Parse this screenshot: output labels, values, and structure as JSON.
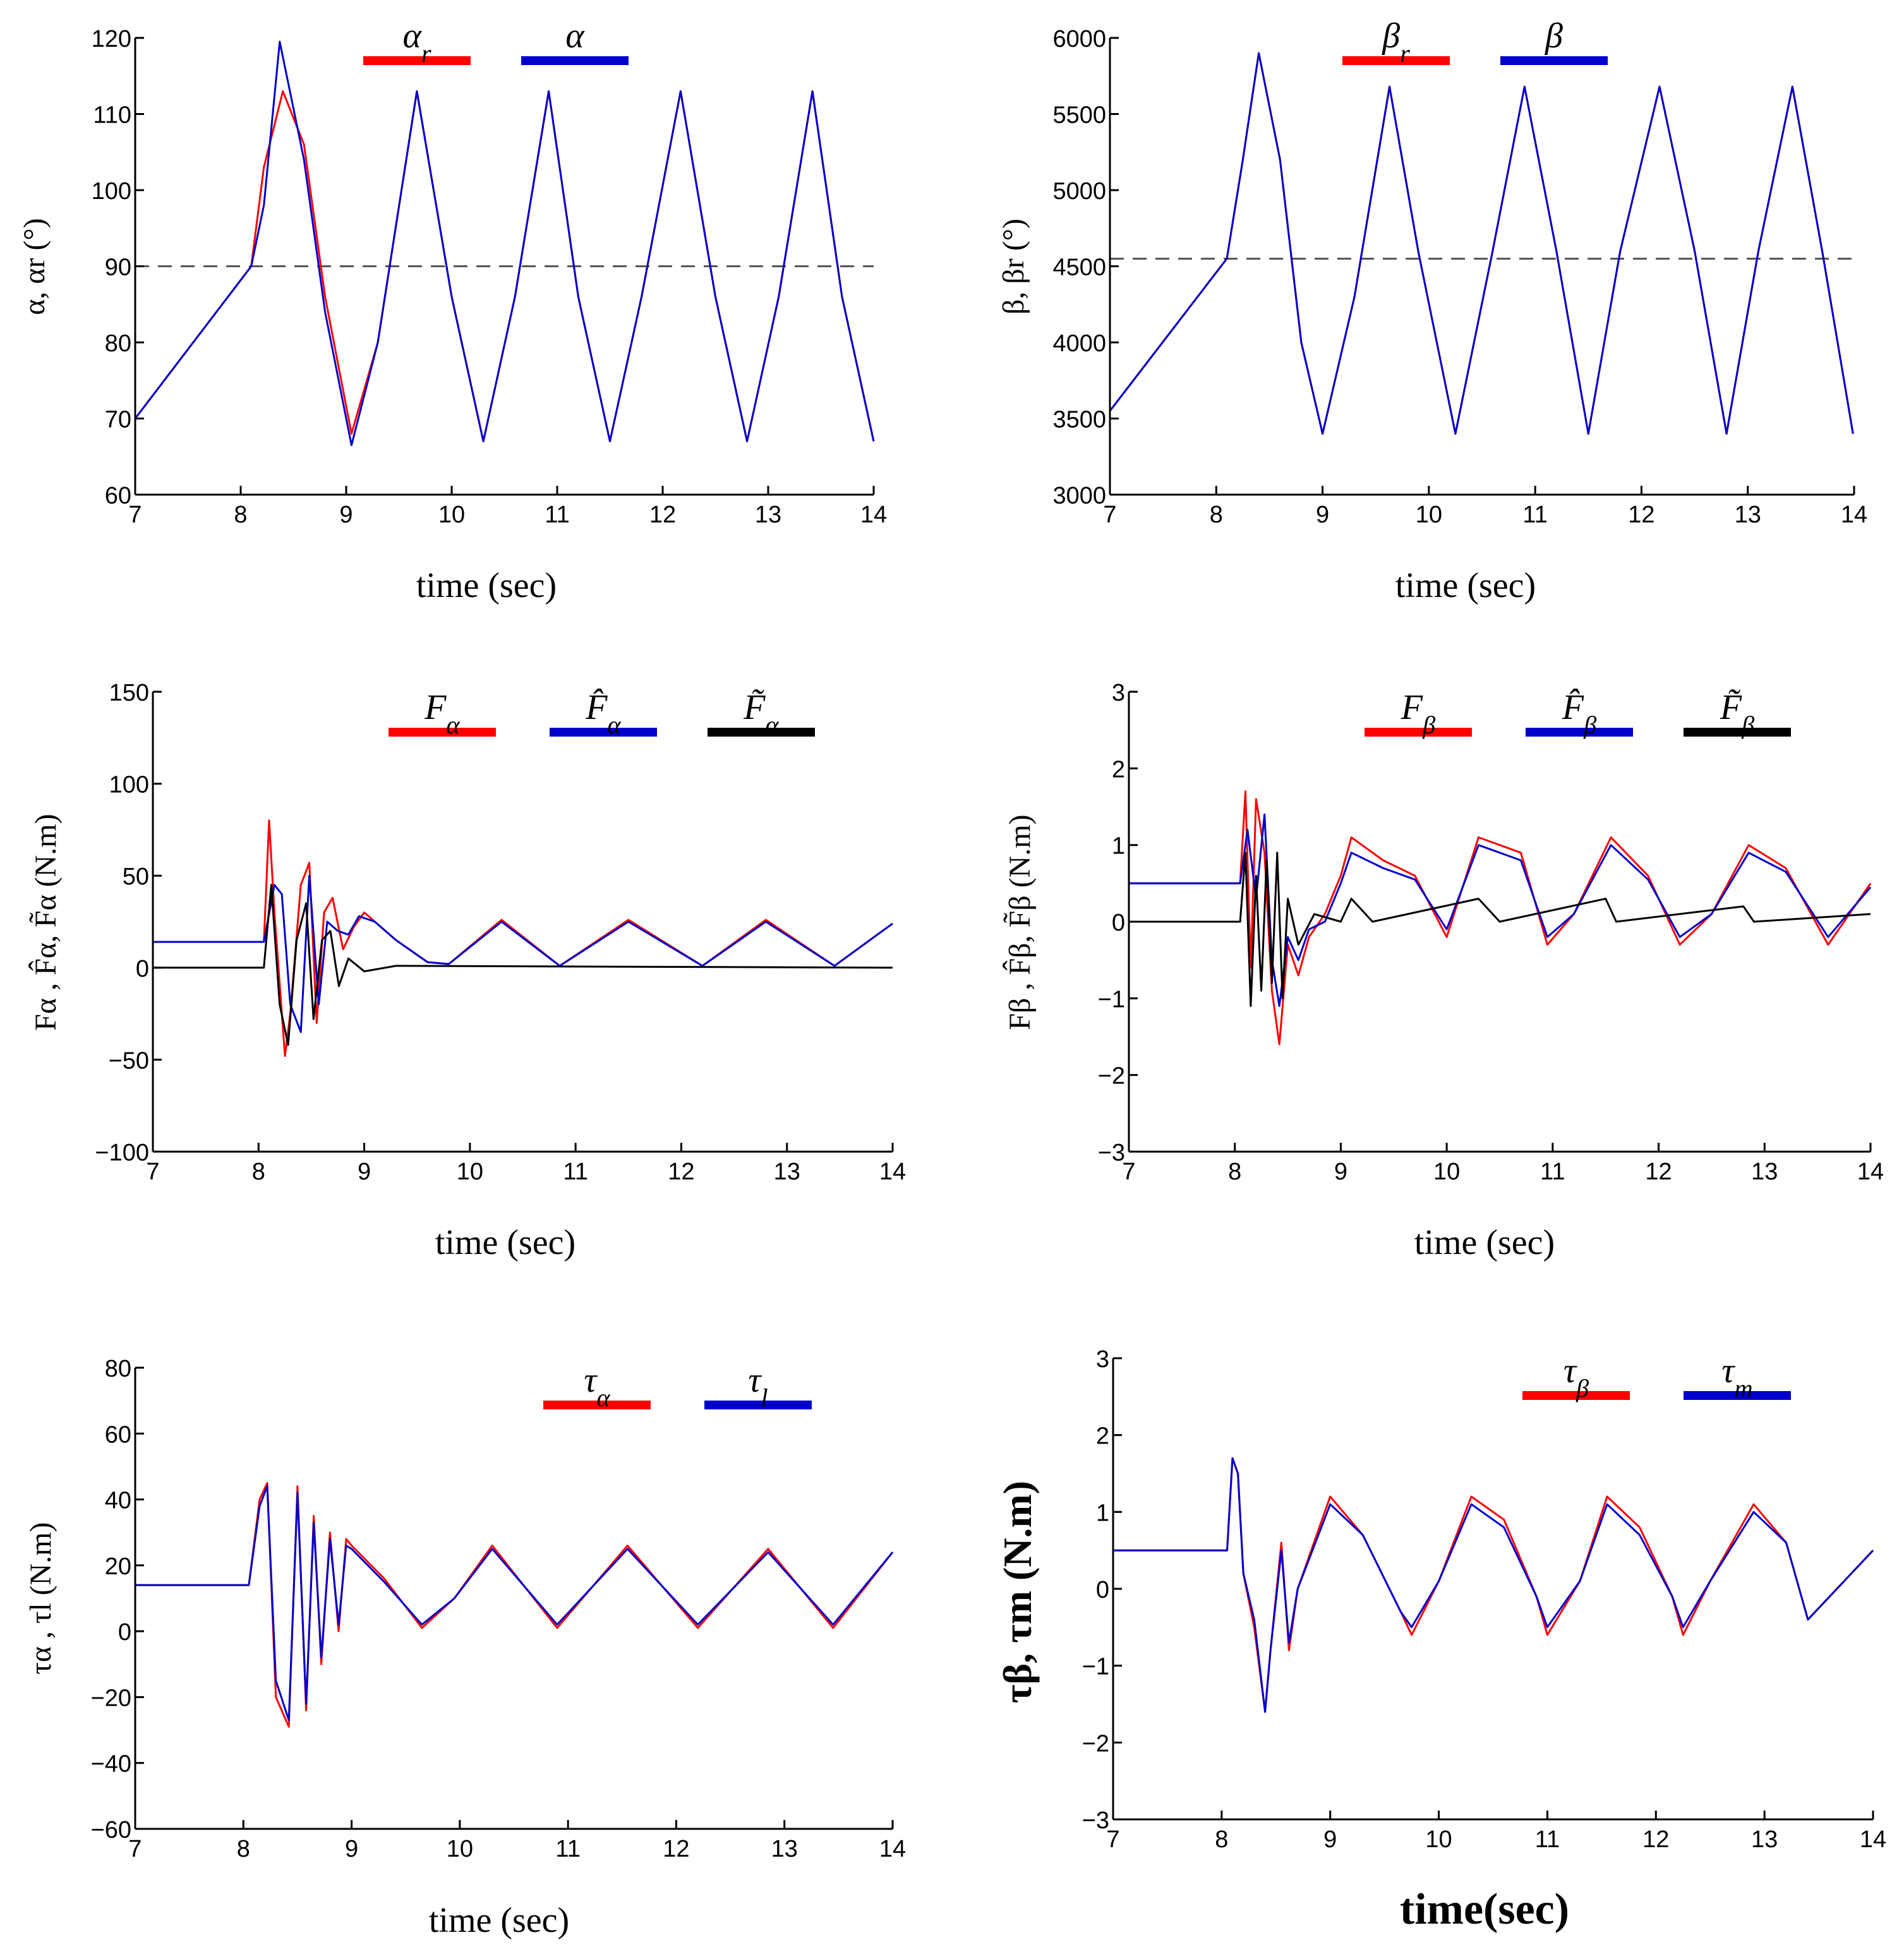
{
  "colors": {
    "red": "#ff0000",
    "blue": "#0000cc",
    "black": "#000000",
    "dash": "#555555"
  },
  "chart_data": [
    {
      "id": "alpha",
      "type": "line",
      "xlabel": "time (sec)",
      "ylabel": "α, αr (°)",
      "xlim": [
        7,
        14
      ],
      "ylim": [
        60,
        120
      ],
      "xticks": [
        7,
        8,
        9,
        10,
        11,
        12,
        13,
        14
      ],
      "yticks": [
        60,
        70,
        80,
        90,
        100,
        110,
        120
      ],
      "reference_line": 90,
      "series": [
        {
          "name": "αr",
          "color": "#ff0000",
          "x": [
            7,
            8.1,
            8.22,
            8.4,
            8.6,
            8.8,
            9.05,
            9.3,
            9.67,
            10.0,
            10.3,
            10.6,
            10.92,
            11.2,
            11.5,
            11.8,
            12.17,
            12.5,
            12.8,
            13.1,
            13.42,
            13.7,
            14
          ],
          "y": [
            70,
            90,
            103,
            113,
            106,
            86,
            68,
            80,
            113,
            86,
            67,
            86,
            113,
            86,
            67,
            86,
            113,
            86,
            67,
            86,
            113,
            86,
            67
          ]
        },
        {
          "name": "α",
          "color": "#0000cc",
          "x": [
            7,
            8.1,
            8.22,
            8.37,
            8.6,
            8.8,
            9.05,
            9.3,
            9.67,
            10.0,
            10.3,
            10.6,
            10.92,
            11.2,
            11.5,
            11.8,
            12.17,
            12.5,
            12.8,
            13.1,
            13.42,
            13.7,
            14
          ],
          "y": [
            70,
            90,
            98,
            119.5,
            104,
            84,
            66.5,
            80,
            113,
            86,
            67,
            86,
            113,
            86,
            67,
            86,
            113,
            86,
            67,
            86,
            113,
            86,
            67
          ]
        }
      ],
      "legend": [
        {
          "label": "αr",
          "color": "#ff0000"
        },
        {
          "label": "α",
          "color": "#0000cc"
        }
      ]
    },
    {
      "id": "beta",
      "type": "line",
      "xlabel": "time (sec)",
      "ylabel": "β, βr (°)",
      "xlim": [
        7,
        14
      ],
      "ylim": [
        3000,
        6000
      ],
      "xticks": [
        7,
        8,
        9,
        10,
        11,
        12,
        13,
        14
      ],
      "yticks": [
        3000,
        3500,
        4000,
        4500,
        5000,
        5500,
        6000
      ],
      "reference_line": 4550,
      "series": [
        {
          "name": "βr",
          "color": "#ff0000",
          "x": [
            7,
            8.1,
            8.25,
            8.4,
            8.6,
            8.8,
            9.0,
            9.3,
            9.63,
            9.9,
            10.25,
            10.6,
            10.9,
            11.2,
            11.5,
            11.8,
            12.17,
            12.5,
            12.8,
            13.1,
            13.42,
            13.7,
            13.99
          ],
          "y": [
            3550,
            4550,
            5200,
            5900,
            5200,
            4000,
            3400,
            4300,
            5680,
            4600,
            3400,
            4600,
            5680,
            4600,
            3400,
            4600,
            5680,
            4600,
            3400,
            4600,
            5680,
            4600,
            3400
          ]
        },
        {
          "name": "β",
          "color": "#0000cc",
          "x": [
            7,
            8.1,
            8.25,
            8.4,
            8.6,
            8.8,
            9.0,
            9.3,
            9.63,
            9.9,
            10.25,
            10.6,
            10.9,
            11.2,
            11.5,
            11.8,
            12.17,
            12.5,
            12.8,
            13.1,
            13.42,
            13.7,
            13.99
          ],
          "y": [
            3550,
            4550,
            5200,
            5900,
            5200,
            4000,
            3400,
            4300,
            5680,
            4600,
            3400,
            4600,
            5680,
            4600,
            3400,
            4600,
            5680,
            4600,
            3400,
            4600,
            5680,
            4600,
            3400
          ]
        }
      ],
      "legend": [
        {
          "label": "βr",
          "color": "#ff0000"
        },
        {
          "label": "β",
          "color": "#0000cc"
        }
      ]
    },
    {
      "id": "F_alpha",
      "type": "line",
      "xlabel": "time (sec)",
      "ylabel": "Fα , F̂α, F̃α (N.m)",
      "xlim": [
        7,
        14
      ],
      "ylim": [
        -100,
        150
      ],
      "xticks": [
        7,
        8,
        9,
        10,
        11,
        12,
        13,
        14
      ],
      "yticks": [
        -100,
        -50,
        0,
        50,
        100,
        150
      ],
      "series": [
        {
          "name": "Fα",
          "color": "#ff0000",
          "x": [
            7,
            8.05,
            8.1,
            8.15,
            8.25,
            8.3,
            8.4,
            8.48,
            8.55,
            8.62,
            8.7,
            8.8,
            8.9,
            9.0,
            9.3,
            9.6,
            9.8,
            10.3,
            10.85,
            11.5,
            12.2,
            12.8,
            13.45,
            14
          ],
          "y": [
            14,
            14,
            80,
            30,
            -48,
            -25,
            45,
            57,
            -30,
            30,
            38,
            10,
            22,
            30,
            15,
            3,
            2,
            26,
            1,
            26,
            1,
            26,
            1,
            24
          ]
        },
        {
          "name": "F̂α",
          "color": "#0000cc",
          "x": [
            7,
            8.05,
            8.15,
            8.22,
            8.3,
            8.4,
            8.48,
            8.57,
            8.65,
            8.75,
            8.85,
            8.95,
            9.1,
            9.3,
            9.6,
            9.8,
            10.3,
            10.85,
            11.5,
            12.2,
            12.8,
            13.45,
            14
          ],
          "y": [
            14,
            14,
            45,
            40,
            -20,
            -35,
            50,
            -20,
            25,
            20,
            18,
            28,
            25,
            15,
            3,
            2,
            25,
            1,
            25,
            1,
            25,
            1,
            24
          ]
        },
        {
          "name": "F̃α",
          "color": "#000000",
          "x": [
            7,
            8.05,
            8.12,
            8.2,
            8.28,
            8.36,
            8.45,
            8.52,
            8.6,
            8.68,
            8.76,
            8.85,
            9.0,
            9.3,
            14
          ],
          "y": [
            0,
            0,
            45,
            -20,
            -42,
            15,
            35,
            -28,
            15,
            20,
            -10,
            5,
            -2,
            1,
            0
          ]
        }
      ],
      "legend": [
        {
          "label": "Fα",
          "color": "#ff0000"
        },
        {
          "label": "F̂α",
          "color": "#0000cc"
        },
        {
          "label": "F̃α",
          "color": "#000000"
        }
      ]
    },
    {
      "id": "F_beta",
      "type": "line",
      "xlabel": "time (sec)",
      "ylabel": "Fβ , F̂β, F̃β (N.m)",
      "xlim": [
        7,
        14
      ],
      "ylim": [
        -3,
        3
      ],
      "xticks": [
        7,
        8,
        9,
        10,
        11,
        12,
        13,
        14
      ],
      "yticks": [
        -3,
        -2,
        -1,
        0,
        1,
        2,
        3
      ],
      "series": [
        {
          "name": "Fβ",
          "color": "#ff0000",
          "x": [
            7,
            8.05,
            8.1,
            8.15,
            8.2,
            8.28,
            8.35,
            8.42,
            8.5,
            8.6,
            8.7,
            8.85,
            9.0,
            9.1,
            9.4,
            9.7,
            10.0,
            10.3,
            10.7,
            10.95,
            11.2,
            11.55,
            11.9,
            12.2,
            12.5,
            12.85,
            13.2,
            13.6,
            14
          ],
          "y": [
            0.5,
            0.5,
            1.7,
            -0.6,
            1.6,
            0.9,
            -0.9,
            -1.6,
            -0.3,
            -0.7,
            -0.2,
            0.1,
            0.6,
            1.1,
            0.8,
            0.6,
            -0.2,
            1.1,
            0.9,
            -0.3,
            0.1,
            1.1,
            0.6,
            -0.3,
            0.1,
            1.0,
            0.7,
            -0.3,
            0.5
          ]
        },
        {
          "name": "F̂β",
          "color": "#0000cc",
          "x": [
            7,
            8.05,
            8.12,
            8.2,
            8.28,
            8.35,
            8.42,
            8.5,
            8.6,
            8.7,
            8.85,
            9.0,
            9.1,
            9.4,
            9.7,
            10.0,
            10.3,
            10.7,
            10.95,
            11.2,
            11.55,
            11.9,
            12.2,
            12.5,
            12.85,
            13.2,
            13.6,
            14
          ],
          "y": [
            0.5,
            0.5,
            1.2,
            0.3,
            1.4,
            -0.5,
            -1.1,
            -0.2,
            -0.5,
            -0.1,
            0.0,
            0.5,
            0.9,
            0.7,
            0.55,
            -0.1,
            1.0,
            0.8,
            -0.2,
            0.1,
            1.0,
            0.55,
            -0.2,
            0.1,
            0.9,
            0.65,
            -0.2,
            0.45
          ]
        },
        {
          "name": "F̃β",
          "color": "#000000",
          "x": [
            7,
            8.05,
            8.1,
            8.15,
            8.2,
            8.25,
            8.3,
            8.35,
            8.4,
            8.45,
            8.5,
            8.6,
            8.75,
            9.0,
            9.1,
            9.3,
            10.3,
            10.5,
            11.5,
            11.6,
            12.8,
            12.9,
            14
          ],
          "y": [
            0,
            0,
            0.9,
            -1.1,
            0.6,
            -0.9,
            0.8,
            -0.8,
            0.9,
            -1.0,
            0.3,
            -0.3,
            0.1,
            0.0,
            0.3,
            0.0,
            0.3,
            0.0,
            0.3,
            0.0,
            0.2,
            0.0,
            0.1
          ]
        }
      ],
      "legend": [
        {
          "label": "Fβ",
          "color": "#ff0000"
        },
        {
          "label": "F̂β",
          "color": "#0000cc"
        },
        {
          "label": "F̃β",
          "color": "#000000"
        }
      ]
    },
    {
      "id": "tau_alpha",
      "type": "line",
      "xlabel": "time (sec)",
      "ylabel": "τα , τl (N.m)",
      "xlim": [
        7,
        14
      ],
      "ylim": [
        -60,
        80
      ],
      "xticks": [
        7,
        8,
        9,
        10,
        11,
        12,
        13,
        14
      ],
      "yticks": [
        -60,
        -40,
        -20,
        0,
        20,
        40,
        60,
        80
      ],
      "series": [
        {
          "name": "τα",
          "color": "#ff0000",
          "x": [
            7,
            8.05,
            8.15,
            8.22,
            8.3,
            8.42,
            8.5,
            8.58,
            8.65,
            8.72,
            8.8,
            8.88,
            8.95,
            9.0,
            9.3,
            9.65,
            9.95,
            10.3,
            10.9,
            11.55,
            12.2,
            12.85,
            13.45,
            14
          ],
          "y": [
            14,
            14,
            40,
            45,
            -20,
            -29,
            44,
            -24,
            35,
            -10,
            30,
            0,
            28,
            26,
            16,
            1,
            10,
            26,
            1,
            26,
            1,
            25,
            1,
            24
          ]
        },
        {
          "name": "τl",
          "color": "#0000cc",
          "x": [
            7,
            8.05,
            8.15,
            8.22,
            8.3,
            8.42,
            8.5,
            8.58,
            8.65,
            8.72,
            8.8,
            8.88,
            8.95,
            9.0,
            9.3,
            9.65,
            9.95,
            10.3,
            10.9,
            11.55,
            12.2,
            12.85,
            13.45,
            14
          ],
          "y": [
            14,
            14,
            38,
            44,
            -15,
            -27,
            42,
            -22,
            33,
            -8,
            28,
            2,
            26,
            25,
            15,
            2,
            10,
            25,
            2,
            25,
            2,
            24,
            2,
            24
          ]
        }
      ],
      "legend": [
        {
          "label": "τα",
          "color": "#ff0000"
        },
        {
          "label": "τl",
          "color": "#0000cc"
        }
      ]
    },
    {
      "id": "tau_beta",
      "type": "line",
      "xlabel": "time(sec)",
      "ylabel": "τβ, τm (N.m)",
      "xlim": [
        7,
        14
      ],
      "ylim": [
        -3,
        3
      ],
      "xticks": [
        7,
        8,
        9,
        10,
        11,
        12,
        13,
        14
      ],
      "yticks": [
        -3,
        -2,
        -1,
        0,
        1,
        2,
        3
      ],
      "series": [
        {
          "name": "τβ",
          "color": "#ff0000",
          "x": [
            7,
            8.05,
            8.1,
            8.15,
            8.2,
            8.3,
            8.4,
            8.45,
            8.55,
            8.62,
            8.7,
            9.0,
            9.3,
            9.65,
            9.75,
            10.0,
            10.3,
            10.6,
            10.9,
            11.0,
            11.3,
            11.55,
            11.85,
            12.15,
            12.25,
            12.5,
            12.9,
            13.2,
            13.4,
            13.6,
            14
          ],
          "y": [
            0.5,
            0.5,
            1.7,
            1.5,
            0.2,
            -0.5,
            -1.6,
            -0.8,
            0.6,
            -0.8,
            0.0,
            1.2,
            0.7,
            -0.3,
            -0.6,
            0.1,
            1.2,
            0.9,
            -0.1,
            -0.6,
            0.1,
            1.2,
            0.8,
            -0.1,
            -0.6,
            0.1,
            1.1,
            0.6,
            -0.4,
            -0.1,
            0.5
          ]
        },
        {
          "name": "τm",
          "color": "#0000cc",
          "x": [
            7,
            8.05,
            8.1,
            8.15,
            8.2,
            8.3,
            8.4,
            8.45,
            8.55,
            8.62,
            8.7,
            9.0,
            9.3,
            9.65,
            9.75,
            10.0,
            10.3,
            10.6,
            10.9,
            11.0,
            11.3,
            11.55,
            11.85,
            12.15,
            12.25,
            12.5,
            12.9,
            13.2,
            13.4,
            13.6,
            14
          ],
          "y": [
            0.5,
            0.5,
            1.7,
            1.5,
            0.2,
            -0.4,
            -1.6,
            -0.8,
            0.5,
            -0.7,
            0.0,
            1.1,
            0.7,
            -0.3,
            -0.5,
            0.1,
            1.1,
            0.8,
            -0.1,
            -0.5,
            0.1,
            1.1,
            0.7,
            -0.1,
            -0.5,
            0.1,
            1.0,
            0.6,
            -0.4,
            -0.1,
            0.5
          ]
        }
      ],
      "legend": [
        {
          "label": "τβ",
          "color": "#ff0000"
        },
        {
          "label": "τm",
          "color": "#0000cc"
        }
      ]
    }
  ]
}
